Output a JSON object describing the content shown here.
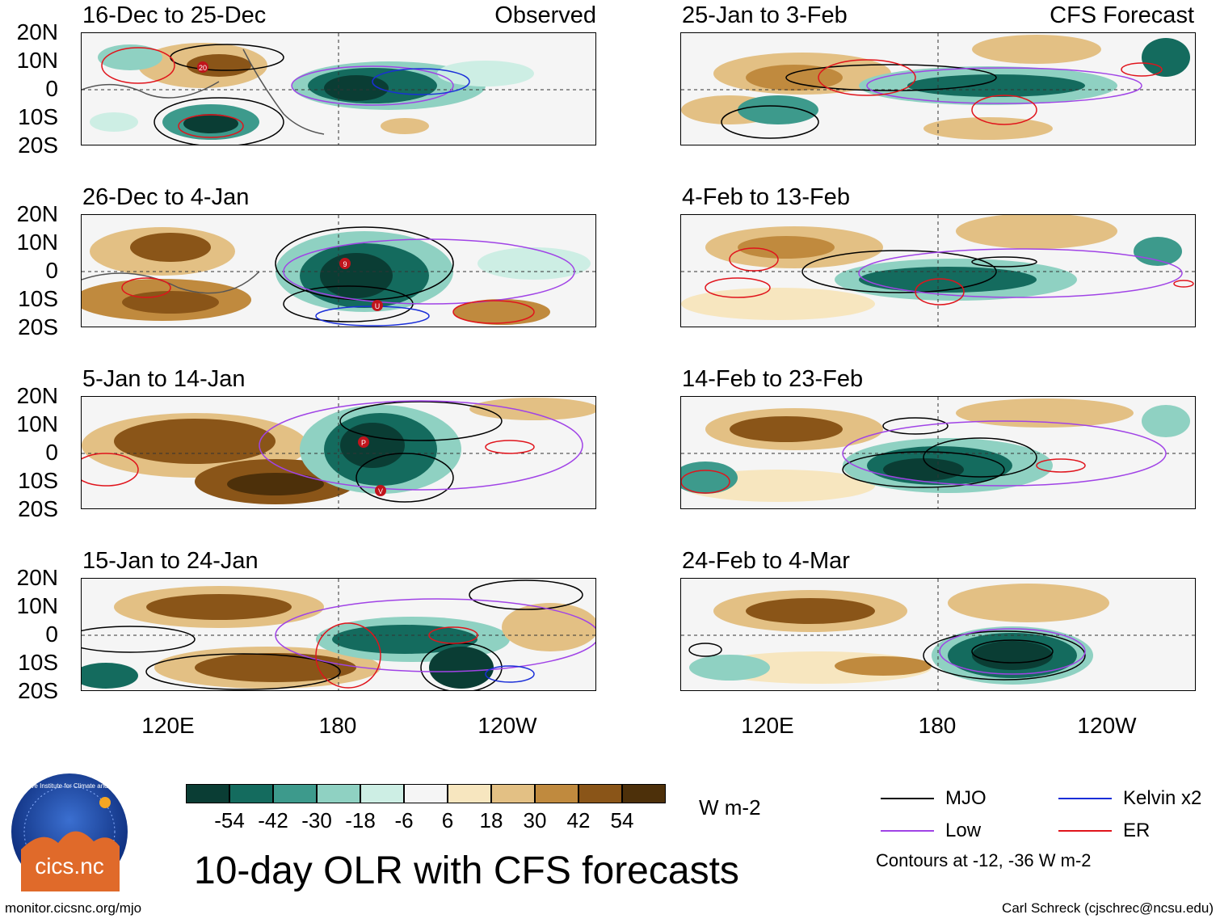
{
  "figure": {
    "title": "10-day OLR with CFS forecasts",
    "units": "W m-2",
    "contour_note": "Contours at -12, -36 W m-2",
    "url": "monitor.cicsnc.org/mjo",
    "credit": "Carl Schreck (cjschrec@ncsu.edu)",
    "logo": {
      "ring_text": "Cooperative Institute for Climate and Satellites",
      "wordmark": "cics.nc"
    }
  },
  "columns": {
    "left_tag": "Observed",
    "right_tag": "CFS Forecast"
  },
  "panels": {
    "left": [
      "16-Dec to 25-Dec",
      "26-Dec to 4-Jan",
      "5-Jan to 14-Jan",
      "15-Jan to 24-Jan"
    ],
    "right": [
      "25-Jan to 3-Feb",
      "4-Feb to 13-Feb",
      "14-Feb to 23-Feb",
      "24-Feb to 4-Mar"
    ]
  },
  "axes": {
    "lat_labels": [
      "20N",
      "10N",
      "0",
      "10S",
      "20S"
    ],
    "lon_labels": [
      "120E",
      "180",
      "120W"
    ]
  },
  "colorbar": {
    "labels": [
      "-54",
      "-42",
      "-30",
      "-18",
      "-6",
      "6",
      "18",
      "30",
      "42",
      "54"
    ],
    "colors": [
      "#0a3d34",
      "#146b5e",
      "#3d9a8c",
      "#8fd1c2",
      "#cdeee4",
      "#f5f5f5",
      "#f7e6bf",
      "#e3c084",
      "#c08a3e",
      "#8a5518",
      "#4d300a"
    ]
  },
  "legend": {
    "mjo": {
      "label": "MJO",
      "color": "#000000"
    },
    "kelvin": {
      "label": "Kelvin x2",
      "color": "#1a2ed8"
    },
    "low": {
      "label": "Low",
      "color": "#a043e6"
    },
    "er": {
      "label": "ER",
      "color": "#e0141c"
    }
  },
  "storms": [
    "20",
    "9",
    "U",
    "P",
    "V"
  ]
}
